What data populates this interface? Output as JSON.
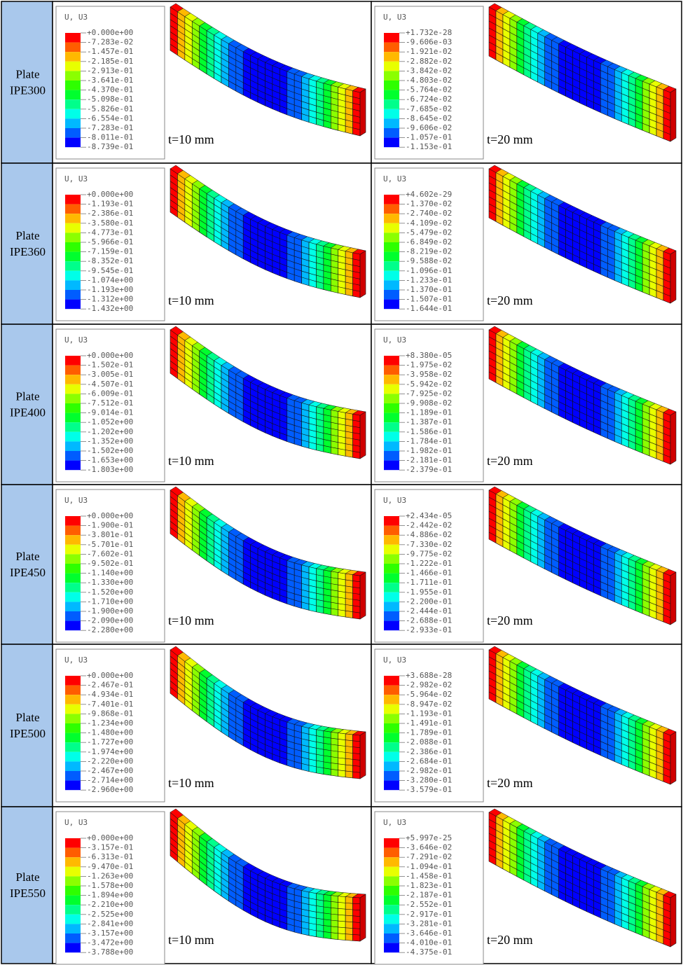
{
  "rows": [
    {
      "label": [
        "Plate",
        "IPE300"
      ],
      "cells": [
        {
          "legend_title": "U, U3",
          "legend_values": [
            "+0.000e+00",
            "-7.283e-02",
            "-1.457e-01",
            "-2.185e-01",
            "-2.913e-01",
            "-3.641e-01",
            "-4.370e-01",
            "-5.098e-01",
            "-5.826e-01",
            "-6.554e-01",
            "-7.283e-01",
            "-8.011e-01",
            "-8.739e-01"
          ],
          "caption": "t=10 mm"
        },
        {
          "legend_title": "U, U3",
          "legend_values": [
            "+1.732e-28",
            "-9.606e-03",
            "-1.921e-02",
            "-2.882e-02",
            "-3.842e-02",
            "-4.803e-02",
            "-5.764e-02",
            "-6.724e-02",
            "-7.685e-02",
            "-8.645e-02",
            "-9.606e-02",
            "-1.057e-01",
            "-1.153e-01"
          ],
          "caption": "t=20 mm"
        }
      ]
    },
    {
      "label": [
        "Plate",
        "IPE360"
      ],
      "cells": [
        {
          "legend_title": "U, U3",
          "legend_values": [
            "+0.000e+00",
            "-1.193e-01",
            "-2.386e-01",
            "-3.580e-01",
            "-4.773e-01",
            "-5.966e-01",
            "-7.159e-01",
            "-8.352e-01",
            "-9.545e-01",
            "-1.074e+00",
            "-1.193e+00",
            "-1.312e+00",
            "-1.432e+00"
          ],
          "caption": "t=10 mm"
        },
        {
          "legend_title": "U, U3",
          "legend_values": [
            "+4.602e-29",
            "-1.370e-02",
            "-2.740e-02",
            "-4.109e-02",
            "-5.479e-02",
            "-6.849e-02",
            "-8.219e-02",
            "-9.588e-02",
            "-1.096e-01",
            "-1.233e-01",
            "-1.370e-01",
            "-1.507e-01",
            "-1.644e-01"
          ],
          "caption": "t=20 mm"
        }
      ]
    },
    {
      "label": [
        "Plate",
        "IPE400"
      ],
      "cells": [
        {
          "legend_title": "U, U3",
          "legend_values": [
            "+0.000e+00",
            "-1.502e-01",
            "-3.005e-01",
            "-4.507e-01",
            "-6.009e-01",
            "-7.512e-01",
            "-9.014e-01",
            "-1.052e+00",
            "-1.202e+00",
            "-1.352e+00",
            "-1.502e+00",
            "-1.653e+00",
            "-1.803e+00"
          ],
          "caption": "t=10 mm"
        },
        {
          "legend_title": "U, U3",
          "legend_values": [
            "+8.380e-05",
            "-1.975e-02",
            "-3.958e-02",
            "-5.942e-02",
            "-7.925e-02",
            "-9.908e-02",
            "-1.189e-01",
            "-1.387e-01",
            "-1.586e-01",
            "-1.784e-01",
            "-1.982e-01",
            "-2.181e-01",
            "-2.379e-01"
          ],
          "caption": "t=20 mm"
        }
      ]
    },
    {
      "label": [
        "Plate",
        "IPE450"
      ],
      "cells": [
        {
          "legend_title": "U, U3",
          "legend_values": [
            "+0.000e+00",
            "-1.900e-01",
            "-3.801e-01",
            "-5.701e-01",
            "-7.602e-01",
            "-9.502e-01",
            "-1.140e+00",
            "-1.330e+00",
            "-1.520e+00",
            "-1.710e+00",
            "-1.900e+00",
            "-2.090e+00",
            "-2.280e+00"
          ],
          "caption": "t=10 mm"
        },
        {
          "legend_title": "U, U3",
          "legend_values": [
            "+2.434e-05",
            "-2.442e-02",
            "-4.886e-02",
            "-7.330e-02",
            "-9.775e-02",
            "-1.222e-01",
            "-1.466e-01",
            "-1.711e-01",
            "-1.955e-01",
            "-2.200e-01",
            "-2.444e-01",
            "-2.688e-01",
            "-2.933e-01"
          ],
          "caption": "t=20 mm"
        }
      ]
    },
    {
      "label": [
        "Plate",
        "IPE500"
      ],
      "cells": [
        {
          "legend_title": "U, U3",
          "legend_values": [
            "+0.000e+00",
            "-2.467e-01",
            "-4.934e-01",
            "-7.401e-01",
            "-9.868e-01",
            "-1.234e+00",
            "-1.480e+00",
            "-1.727e+00",
            "-1.974e+00",
            "-2.220e+00",
            "-2.467e+00",
            "-2.714e+00",
            "-2.960e+00"
          ],
          "caption": "t=10 mm"
        },
        {
          "legend_title": "U, U3",
          "legend_values": [
            "+3.688e-28",
            "-2.982e-02",
            "-5.964e-02",
            "-8.947e-02",
            "-1.193e-01",
            "-1.491e-01",
            "-1.789e-01",
            "-2.088e-01",
            "-2.386e-01",
            "-2.684e-01",
            "-2.982e-01",
            "-3.280e-01",
            "-3.579e-01"
          ],
          "caption": "t=20 mm"
        }
      ]
    },
    {
      "label": [
        "Plate",
        "IPE550"
      ],
      "cells": [
        {
          "legend_title": "U, U3",
          "legend_values": [
            "+0.000e+00",
            "-3.157e-01",
            "-6.313e-01",
            "-9.470e-01",
            "-1.263e+00",
            "-1.578e+00",
            "-1.894e+00",
            "-2.210e+00",
            "-2.525e+00",
            "-2.841e+00",
            "-3.157e+00",
            "-3.472e+00",
            "-3.788e+00"
          ],
          "caption": "t=10 mm"
        },
        {
          "legend_title": "U, U3",
          "legend_values": [
            "+5.997e-25",
            "-3.646e-02",
            "-7.291e-02",
            "-1.094e-01",
            "-1.458e-01",
            "-1.823e-01",
            "-2.187e-01",
            "-2.552e-01",
            "-2.917e-01",
            "-3.281e-01",
            "-3.646e-01",
            "-4.010e-01",
            "-4.375e-01"
          ],
          "caption": "t=20 mm"
        }
      ]
    }
  ]
}
